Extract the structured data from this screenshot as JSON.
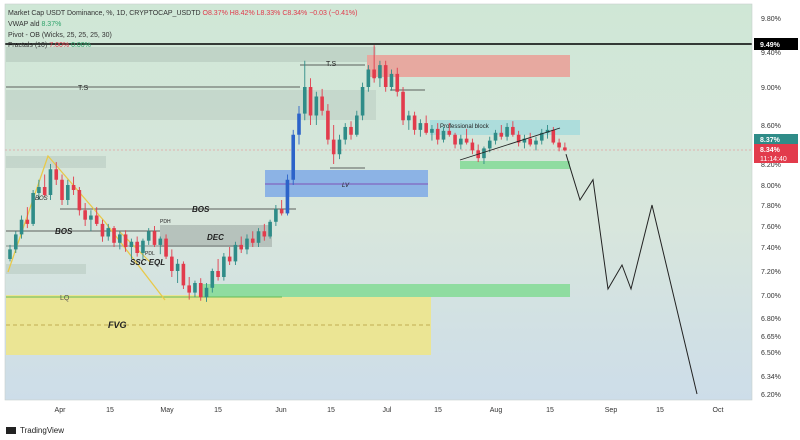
{
  "legend": {
    "symbol": "Market Cap USDT Dominance, %, 1D, CRYPTOCAP_USDTD",
    "ohlc": {
      "o": "O8.37%",
      "h": "H8.42%",
      "l": "L8.33%",
      "c": "C8.34%",
      "chg": "−0.03 (−0.41%)"
    },
    "vwap_label": "VWAP ald",
    "vwap_value": "8.37%",
    "pivot": "Pivot - OB (Wicks, 25, 25, 25, 30)",
    "fractals_label": "Fractals (10)",
    "fractals_v1": "7.00%",
    "fractals_v2": "0.00%"
  },
  "footer": {
    "brand": "TradingView"
  },
  "colors": {
    "up": "#2f8c88",
    "down": "#e23b4c",
    "blue_candle": "#2c63c9",
    "demand": "#8fdca0",
    "supply": "#e7a9a0",
    "lv": "#7fa9e6",
    "fvg": "#ece58f",
    "bg_top": "#cfe7d6",
    "bg_bottom": "#cddde9"
  },
  "chart_data": {
    "type": "candlestick",
    "symbol": "CRYPTOCAP:USDT.D",
    "timeframe": "1D",
    "y_axis": {
      "unit": "%",
      "ticks": [
        "9.80%",
        "9.40%",
        "9.00%",
        "8.60%",
        "8.20%",
        "8.00%",
        "7.80%",
        "7.60%",
        "7.40%",
        "7.20%",
        "7.00%",
        "6.80%",
        "6.65%",
        "6.50%",
        "6.34%",
        "6.20%"
      ]
    },
    "x_axis": {
      "ticks": [
        "Apr",
        "15",
        "May",
        "15",
        "Jun",
        "15",
        "Jul",
        "15",
        "Aug",
        "15",
        "Sep",
        "15",
        "Oct"
      ]
    },
    "price_labels": {
      "level_line": "9.49%",
      "last_dark": "8.37%",
      "last_red": "8.34%",
      "countdown": "11:14:40"
    },
    "annotations": [
      {
        "text": "T.S",
        "kind": "label"
      },
      {
        "text": "T.S",
        "kind": "label"
      },
      {
        "text": "BOS",
        "kind": "label"
      },
      {
        "text": "BOS",
        "kind": "label"
      },
      {
        "text": "DEC",
        "kind": "label"
      },
      {
        "text": "SSC EQL",
        "kind": "label"
      },
      {
        "text": "LV",
        "kind": "label"
      },
      {
        "text": "LQ",
        "kind": "label"
      },
      {
        "text": "FVG",
        "kind": "label"
      },
      {
        "text": "Professional block",
        "kind": "label"
      },
      {
        "text": "BOS",
        "kind": "small"
      },
      {
        "text": "PDH",
        "kind": "small"
      },
      {
        "text": "PDL",
        "kind": "small"
      }
    ],
    "projection_path": [
      8.3,
      7.85,
      8.05,
      7.05,
      7.25,
      7.05,
      7.8,
      6.2
    ],
    "candles": [
      [
        7.3,
        7.42,
        7.28,
        7.38
      ],
      [
        7.38,
        7.55,
        7.35,
        7.52
      ],
      [
        7.52,
        7.7,
        7.48,
        7.66
      ],
      [
        7.66,
        7.78,
        7.58,
        7.62
      ],
      [
        7.62,
        7.95,
        7.6,
        7.92
      ],
      [
        7.92,
        8.05,
        7.85,
        7.98
      ],
      [
        7.98,
        8.1,
        7.88,
        7.9
      ],
      [
        7.9,
        8.2,
        7.85,
        8.15
      ],
      [
        8.15,
        8.22,
        8.0,
        8.05
      ],
      [
        8.05,
        8.1,
        7.8,
        7.85
      ],
      [
        7.85,
        8.05,
        7.8,
        8.0
      ],
      [
        8.0,
        8.08,
        7.9,
        7.95
      ],
      [
        7.95,
        7.98,
        7.7,
        7.75
      ],
      [
        7.75,
        7.82,
        7.6,
        7.66
      ],
      [
        7.66,
        7.75,
        7.55,
        7.7
      ],
      [
        7.7,
        7.78,
        7.6,
        7.62
      ],
      [
        7.62,
        7.66,
        7.45,
        7.5
      ],
      [
        7.5,
        7.62,
        7.46,
        7.58
      ],
      [
        7.58,
        7.6,
        7.4,
        7.44
      ],
      [
        7.44,
        7.55,
        7.38,
        7.52
      ],
      [
        7.52,
        7.56,
        7.36,
        7.4
      ],
      [
        7.4,
        7.48,
        7.3,
        7.45
      ],
      [
        7.45,
        7.5,
        7.32,
        7.35
      ],
      [
        7.35,
        7.48,
        7.3,
        7.46
      ],
      [
        7.46,
        7.58,
        7.42,
        7.55
      ],
      [
        7.55,
        7.6,
        7.4,
        7.42
      ],
      [
        7.42,
        7.5,
        7.34,
        7.48
      ],
      [
        7.48,
        7.52,
        7.3,
        7.32
      ],
      [
        7.32,
        7.38,
        7.15,
        7.2
      ],
      [
        7.2,
        7.3,
        7.1,
        7.26
      ],
      [
        7.26,
        7.28,
        7.05,
        7.08
      ],
      [
        7.08,
        7.15,
        6.96,
        7.02
      ],
      [
        7.02,
        7.12,
        6.98,
        7.1
      ],
      [
        7.1,
        7.14,
        6.95,
        6.98
      ],
      [
        6.98,
        7.1,
        6.94,
        7.06
      ],
      [
        7.06,
        7.22,
        7.02,
        7.2
      ],
      [
        7.2,
        7.3,
        7.12,
        7.15
      ],
      [
        7.15,
        7.35,
        7.12,
        7.32
      ],
      [
        7.32,
        7.4,
        7.25,
        7.28
      ],
      [
        7.28,
        7.45,
        7.25,
        7.42
      ],
      [
        7.42,
        7.5,
        7.35,
        7.38
      ],
      [
        7.38,
        7.52,
        7.34,
        7.48
      ],
      [
        7.48,
        7.55,
        7.4,
        7.44
      ],
      [
        7.44,
        7.58,
        7.4,
        7.55
      ],
      [
        7.55,
        7.62,
        7.46,
        7.5
      ],
      [
        7.5,
        7.66,
        7.48,
        7.64
      ],
      [
        7.64,
        7.8,
        7.6,
        7.76
      ],
      [
        7.76,
        7.85,
        7.7,
        7.72
      ],
      [
        7.72,
        8.1,
        7.7,
        8.05
      ],
      [
        8.05,
        8.55,
        8.0,
        8.5
      ],
      [
        8.5,
        8.8,
        8.4,
        8.72
      ],
      [
        8.72,
        9.3,
        8.65,
        9.0
      ],
      [
        9.0,
        9.1,
        8.6,
        8.7
      ],
      [
        8.7,
        8.95,
        8.6,
        8.9
      ],
      [
        8.9,
        8.98,
        8.7,
        8.75
      ],
      [
        8.75,
        8.82,
        8.4,
        8.45
      ],
      [
        8.45,
        8.6,
        8.2,
        8.3
      ],
      [
        8.3,
        8.5,
        8.25,
        8.45
      ],
      [
        8.45,
        8.62,
        8.4,
        8.58
      ],
      [
        8.58,
        8.64,
        8.45,
        8.5
      ],
      [
        8.5,
        8.75,
        8.48,
        8.7
      ],
      [
        8.7,
        9.05,
        8.65,
        9.0
      ],
      [
        9.0,
        9.25,
        8.95,
        9.2
      ],
      [
        9.2,
        9.48,
        9.05,
        9.1
      ],
      [
        9.1,
        9.3,
        9.0,
        9.25
      ],
      [
        9.25,
        9.3,
        8.95,
        9.0
      ],
      [
        9.0,
        9.2,
        8.96,
        9.15
      ],
      [
        9.15,
        9.22,
        8.9,
        8.95
      ],
      [
        8.95,
        9.0,
        8.6,
        8.65
      ],
      [
        8.65,
        8.75,
        8.55,
        8.7
      ],
      [
        8.7,
        8.74,
        8.5,
        8.55
      ],
      [
        8.55,
        8.66,
        8.48,
        8.62
      ],
      [
        8.62,
        8.7,
        8.5,
        8.52
      ],
      [
        8.52,
        8.6,
        8.44,
        8.56
      ],
      [
        8.56,
        8.62,
        8.4,
        8.45
      ],
      [
        8.45,
        8.58,
        8.42,
        8.54
      ],
      [
        8.54,
        8.62,
        8.48,
        8.5
      ],
      [
        8.5,
        8.52,
        8.36,
        8.4
      ],
      [
        8.4,
        8.5,
        8.35,
        8.46
      ],
      [
        8.46,
        8.56,
        8.4,
        8.42
      ],
      [
        8.42,
        8.46,
        8.3,
        8.34
      ],
      [
        8.34,
        8.4,
        8.22,
        8.26
      ],
      [
        8.26,
        8.38,
        8.2,
        8.36
      ],
      [
        8.36,
        8.48,
        8.32,
        8.44
      ],
      [
        8.44,
        8.55,
        8.4,
        8.52
      ],
      [
        8.52,
        8.6,
        8.45,
        8.48
      ],
      [
        8.48,
        8.62,
        8.44,
        8.58
      ],
      [
        8.58,
        8.64,
        8.48,
        8.5
      ],
      [
        8.5,
        8.54,
        8.38,
        8.42
      ],
      [
        8.42,
        8.5,
        8.36,
        8.46
      ],
      [
        8.46,
        8.52,
        8.38,
        8.4
      ],
      [
        8.4,
        8.48,
        8.34,
        8.44
      ],
      [
        8.44,
        8.56,
        8.4,
        8.52
      ],
      [
        8.52,
        8.6,
        8.46,
        8.55
      ],
      [
        8.55,
        8.58,
        8.4,
        8.42
      ],
      [
        8.42,
        8.46,
        8.33,
        8.37
      ],
      [
        8.37,
        8.42,
        8.33,
        8.34
      ]
    ]
  }
}
